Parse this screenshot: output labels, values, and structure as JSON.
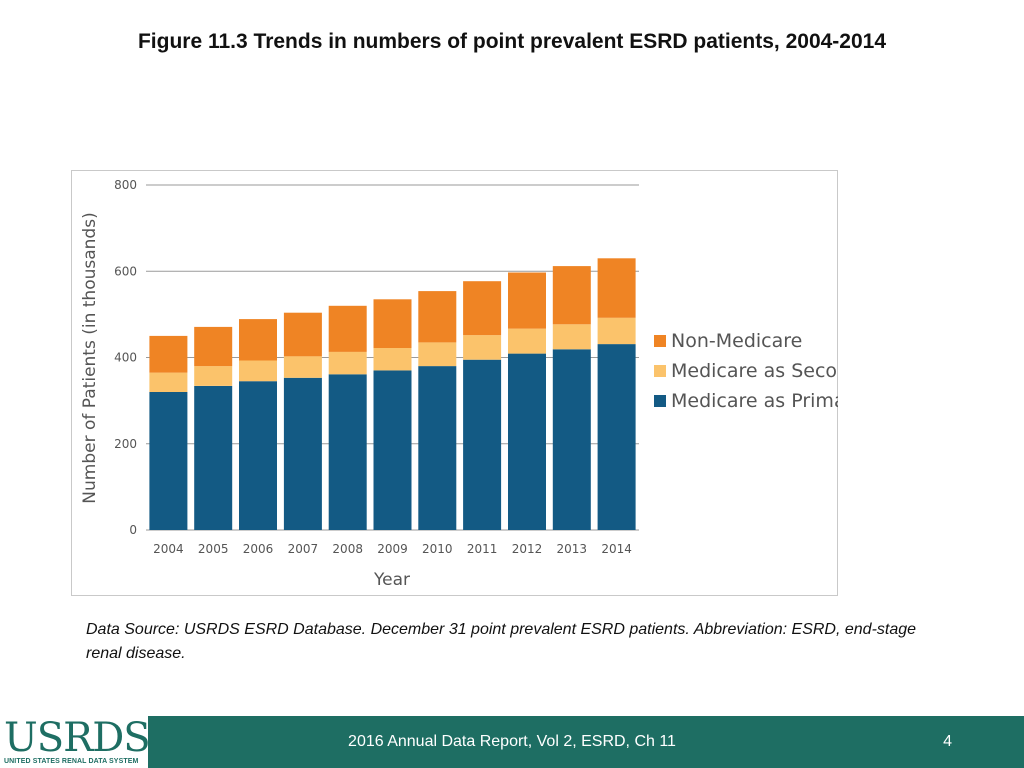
{
  "slide": {
    "title": "Figure 11.3 Trends in numbers of point prevalent ESRD patients, 2004-2014",
    "source_note": "Data Source: USRDS ESRD Database. December 31 point prevalent ESRD patients. Abbreviation: ESRD, end-stage renal disease."
  },
  "footer": {
    "logo_text": "USRDS",
    "logo_subtitle": "UNITED STATES RENAL DATA SYSTEM",
    "report_label": "2016 Annual Data Report, Vol 2, ESRD, Ch 11",
    "page_number": "4"
  },
  "colors": {
    "primary": "#135a84",
    "secondary": "#fbc36b",
    "non_medicare": "#ef8424",
    "grid": "#9a9a9a",
    "footer": "#1e6e63"
  },
  "chart_data": {
    "type": "bar",
    "stacked": true,
    "title": "",
    "xlabel": "Year",
    "ylabel": "Number of Patients (in thousands)",
    "ylim": [
      0,
      800
    ],
    "yticks": [
      "0",
      "200",
      "400",
      "600",
      "800"
    ],
    "grid": true,
    "legend_position": "right",
    "categories": [
      "2004",
      "2005",
      "2006",
      "2007",
      "2008",
      "2009",
      "2010",
      "2011",
      "2012",
      "2013",
      "2014"
    ],
    "series": [
      {
        "name": "Medicare as Primary Payer",
        "color": "#135a84",
        "values": [
          320,
          334,
          345,
          353,
          361,
          370,
          380,
          395,
          409,
          419,
          431
        ]
      },
      {
        "name": "Medicare as Secondary Payer",
        "color": "#fbc36b",
        "values": [
          45,
          46,
          48,
          50,
          52,
          52,
          55,
          57,
          58,
          58,
          61
        ]
      },
      {
        "name": "Non-Medicare",
        "color": "#ef8424",
        "values": [
          85,
          91,
          96,
          101,
          107,
          113,
          119,
          125,
          130,
          135,
          138
        ]
      }
    ],
    "legend_order": [
      "Non-Medicare",
      "Medicare as Secondary Payer",
      "Medicare as Primary Payer"
    ]
  }
}
